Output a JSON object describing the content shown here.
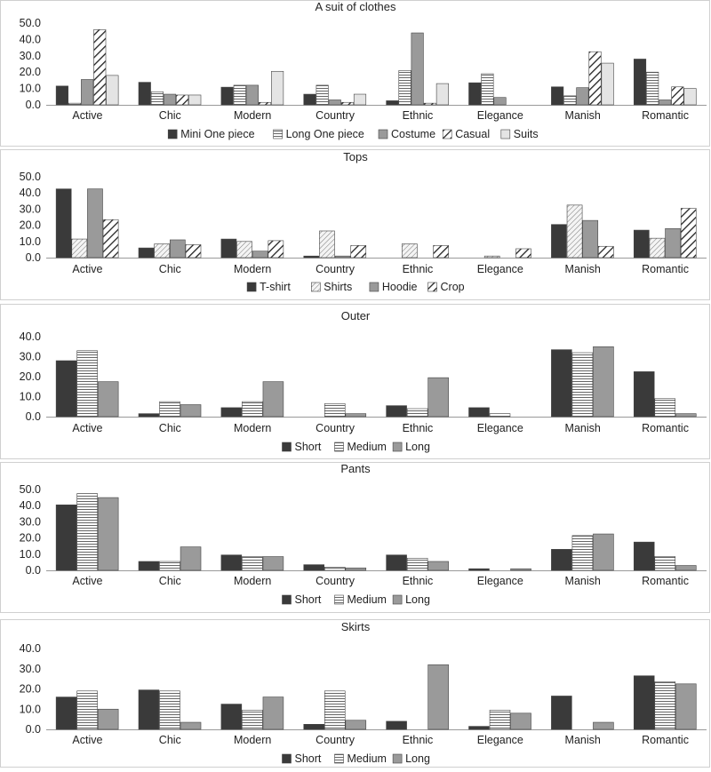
{
  "colors": {
    "dark": "#3a3a3a",
    "medium": "#9a9a9a",
    "light": "#e4e4e4",
    "axis": "#9a9a9a",
    "frame": "#d0d0d0"
  },
  "chart_data": [
    {
      "type": "bar",
      "title": "A suit of clothes",
      "categories": [
        "Active",
        "Chic",
        "Modern",
        "Country",
        "Ethnic",
        "Elegance",
        "Manish",
        "Romantic"
      ],
      "ylim": [
        0,
        50
      ],
      "yticks": [
        "0.0",
        "10.0",
        "20.0",
        "30.0",
        "40.0",
        "50.0"
      ],
      "ytick_values": [
        0,
        10,
        20,
        30,
        40,
        50
      ],
      "legend_position": "bottom",
      "series": [
        {
          "name": "Mini One piece",
          "pattern": "solid-dark",
          "values": [
            11.5,
            13.8,
            10.8,
            6.5,
            2.5,
            13.5,
            11.0,
            28.0
          ]
        },
        {
          "name": "Long One piece",
          "pattern": "horizontal-lines",
          "values": [
            1.0,
            8.0,
            12.0,
            12.0,
            21.0,
            19.0,
            5.5,
            20.0
          ]
        },
        {
          "name": "Costume",
          "pattern": "solid-medium",
          "values": [
            15.5,
            6.5,
            12.0,
            3.0,
            44.0,
            4.5,
            10.5,
            3.0
          ]
        },
        {
          "name": "Casual",
          "pattern": "diagonal-lines",
          "values": [
            46.0,
            6.0,
            1.5,
            1.5,
            1.0,
            0,
            32.5,
            11.0
          ]
        },
        {
          "name": "Suits",
          "pattern": "solid-light",
          "values": [
            18.0,
            6.0,
            20.5,
            6.5,
            13.0,
            0,
            25.5,
            10.0
          ]
        }
      ]
    },
    {
      "type": "bar",
      "title": "Tops",
      "categories": [
        "Active",
        "Chic",
        "Modern",
        "Country",
        "Ethnic",
        "Elegance",
        "Manish",
        "Romantic"
      ],
      "ylim": [
        0,
        50
      ],
      "yticks": [
        "0.0",
        "10.0",
        "20.0",
        "30.0",
        "40.0",
        "50.0"
      ],
      "ytick_values": [
        0,
        10,
        20,
        30,
        40,
        50
      ],
      "legend_position": "bottom",
      "series": [
        {
          "name": "T-shirt",
          "pattern": "solid-dark",
          "values": [
            42.5,
            6.0,
            11.5,
            1.0,
            0,
            0,
            20.5,
            17.0
          ]
        },
        {
          "name": "Shirts",
          "pattern": "fine-diagonal",
          "values": [
            11.5,
            8.5,
            10.0,
            16.5,
            8.5,
            1.0,
            32.5,
            12.0
          ]
        },
        {
          "name": "Hoodie",
          "pattern": "solid-medium",
          "values": [
            42.5,
            11.0,
            4.0,
            1.0,
            0,
            0,
            23.0,
            18.0
          ]
        },
        {
          "name": "Crop",
          "pattern": "diagonal-lines",
          "values": [
            23.5,
            8.0,
            10.5,
            7.5,
            7.5,
            5.5,
            7.0,
            30.5
          ]
        }
      ]
    },
    {
      "type": "bar",
      "title": "Outer",
      "categories": [
        "Active",
        "Chic",
        "Modern",
        "Country",
        "Ethnic",
        "Elegance",
        "Manish",
        "Romantic"
      ],
      "ylim": [
        0,
        40
      ],
      "yticks": [
        "0.0",
        "10.0",
        "20.0",
        "30.0",
        "40.0"
      ],
      "ytick_values": [
        0,
        10,
        20,
        30,
        40
      ],
      "legend_position": "bottom",
      "series": [
        {
          "name": "Short",
          "pattern": "solid-dark",
          "values": [
            28.0,
            1.5,
            4.5,
            0,
            5.5,
            4.5,
            33.5,
            22.5
          ]
        },
        {
          "name": "Medium",
          "pattern": "horizontal-lines",
          "values": [
            33.0,
            7.5,
            7.5,
            6.5,
            4.0,
            1.5,
            32.0,
            9.0
          ]
        },
        {
          "name": "Long",
          "pattern": "solid-medium",
          "values": [
            17.5,
            6.0,
            17.5,
            1.5,
            19.5,
            0,
            35.0,
            1.5
          ]
        }
      ]
    },
    {
      "type": "bar",
      "title": "Pants",
      "categories": [
        "Active",
        "Chic",
        "Modern",
        "Country",
        "Ethnic",
        "Elegance",
        "Manish",
        "Romantic"
      ],
      "ylim": [
        0,
        50
      ],
      "yticks": [
        "0.0",
        "10.0",
        "20.0",
        "30.0",
        "40.0",
        "50.0"
      ],
      "ytick_values": [
        0,
        10,
        20,
        30,
        40,
        50
      ],
      "legend_position": "bottom",
      "series": [
        {
          "name": "Short",
          "pattern": "solid-dark",
          "values": [
            40.5,
            5.5,
            9.5,
            3.5,
            9.5,
            1.0,
            13.0,
            17.5
          ]
        },
        {
          "name": "Medium",
          "pattern": "horizontal-lines",
          "values": [
            47.5,
            5.5,
            8.5,
            2.0,
            7.5,
            0,
            21.5,
            8.5
          ]
        },
        {
          "name": "Long",
          "pattern": "solid-medium",
          "values": [
            45.0,
            14.5,
            8.5,
            1.5,
            5.5,
            1.0,
            22.5,
            3.0
          ]
        }
      ]
    },
    {
      "type": "bar",
      "title": "Skirts",
      "categories": [
        "Active",
        "Chic",
        "Modern",
        "Country",
        "Ethnic",
        "Elegance",
        "Manish",
        "Romantic"
      ],
      "ylim": [
        0,
        40
      ],
      "yticks": [
        "0.0",
        "10.0",
        "20.0",
        "30.0",
        "40.0"
      ],
      "ytick_values": [
        0,
        10,
        20,
        30,
        40
      ],
      "legend_position": "bottom",
      "series": [
        {
          "name": "Short",
          "pattern": "solid-dark",
          "values": [
            16.0,
            19.5,
            12.5,
            2.5,
            4.0,
            1.5,
            16.5,
            26.5
          ]
        },
        {
          "name": "Medium",
          "pattern": "horizontal-lines",
          "values": [
            19.0,
            19.0,
            9.5,
            19.0,
            0,
            9.5,
            0,
            23.5
          ]
        },
        {
          "name": "Long",
          "pattern": "solid-medium",
          "values": [
            10.0,
            3.5,
            16.0,
            4.5,
            32.0,
            8.0,
            3.5,
            22.5
          ]
        }
      ]
    }
  ]
}
